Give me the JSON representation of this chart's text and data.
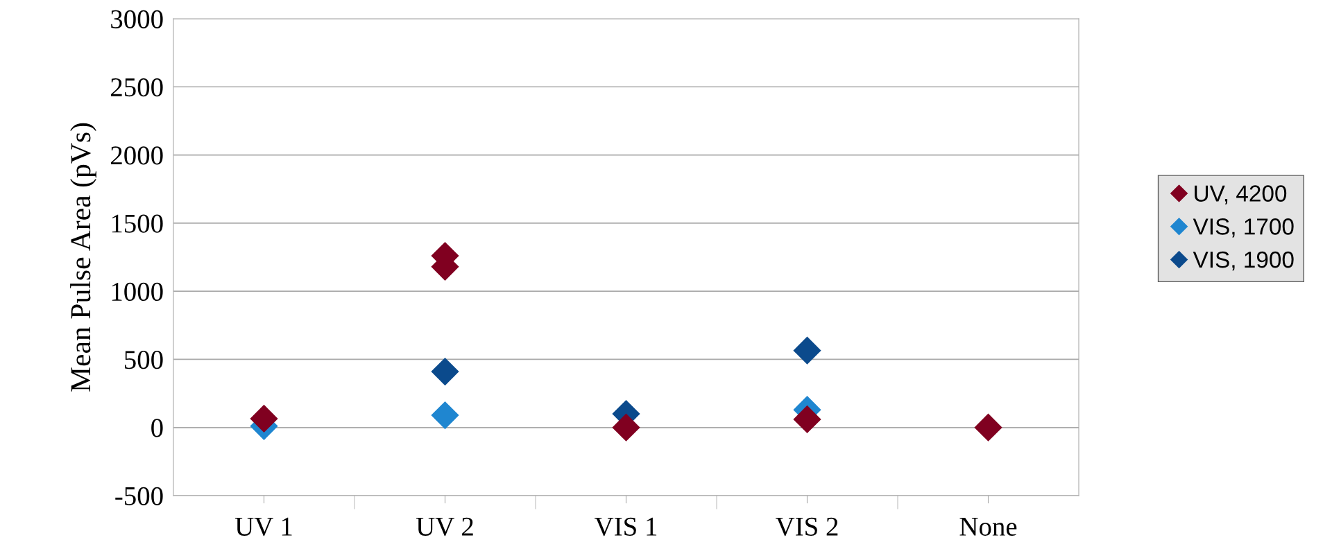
{
  "chart_data": {
    "type": "scatter",
    "ylabel": "Mean Pulse Area (pVs)",
    "categories": [
      "UV 1",
      "UV 2",
      "VIS 1",
      "VIS 2",
      "None"
    ],
    "series": [
      {
        "name": "UV, 4200",
        "color": "#800020",
        "x": [
          "UV 1",
          "UV 2",
          "UV 2",
          "VIS 1",
          "VIS 2",
          "None"
        ],
        "values": [
          65,
          1260,
          1180,
          0,
          60,
          0
        ]
      },
      {
        "name": "VIS, 1700",
        "color": "#1f86d0",
        "x": [
          "UV 1",
          "UV 2",
          "VIS 2"
        ],
        "values": [
          10,
          90,
          130
        ]
      },
      {
        "name": "VIS, 1900",
        "color": "#0b4a8c",
        "x": [
          "UV 2",
          "VIS 1",
          "VIS 2"
        ],
        "values": [
          410,
          100,
          565
        ]
      }
    ],
    "ylim": [
      -500,
      3000
    ],
    "yticks": [
      -500,
      0,
      500,
      1000,
      1500,
      2000,
      2500,
      3000
    ],
    "grid": "y",
    "legend": "right",
    "marker": "diamond"
  }
}
